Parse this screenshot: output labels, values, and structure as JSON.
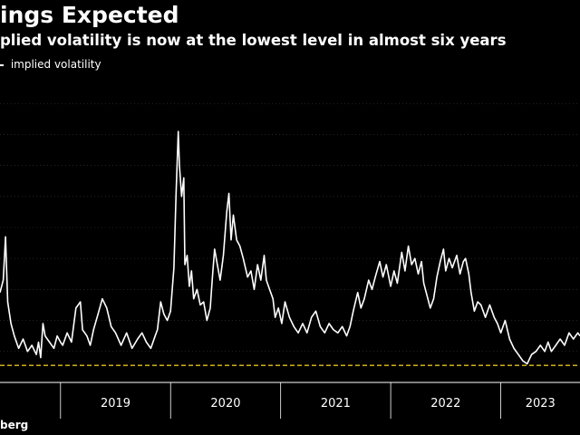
{
  "header": {
    "title": "ings Expected",
    "subtitle": "plied volatility is now at the lowest level in almost six years"
  },
  "legend": {
    "label": "implied volatility"
  },
  "footer": {
    "source": "berg"
  },
  "colors": {
    "background": "#000000",
    "series": "#ffffff",
    "reference_line": "#e8c21a",
    "grid": "#3a3a3a",
    "axis": "#ffffff"
  },
  "chart_data": {
    "type": "line",
    "title": "ings Expected",
    "subtitle": "plied volatility is now at the lowest level in almost six years",
    "xlabel": "",
    "ylabel": "",
    "x_ticks": [
      "2019",
      "2020",
      "2021",
      "2022",
      "2023"
    ],
    "xlim": [
      2018.45,
      2023.72
    ],
    "ylim": [
      0,
      10
    ],
    "grid": true,
    "legend_position": "top-left",
    "reference_line": {
      "y": 0.55,
      "style": "dashed"
    },
    "series": [
      {
        "name": "implied volatility",
        "points": [
          [
            2018.45,
            2.9
          ],
          [
            2018.48,
            3.3
          ],
          [
            2018.5,
            4.7
          ],
          [
            2018.52,
            2.6
          ],
          [
            2018.55,
            1.9
          ],
          [
            2018.58,
            1.5
          ],
          [
            2018.62,
            1.1
          ],
          [
            2018.66,
            1.4
          ],
          [
            2018.7,
            1.0
          ],
          [
            2018.74,
            1.2
          ],
          [
            2018.78,
            0.9
          ],
          [
            2018.8,
            1.3
          ],
          [
            2018.82,
            0.8
          ],
          [
            2018.84,
            1.9
          ],
          [
            2018.86,
            1.5
          ],
          [
            2018.9,
            1.3
          ],
          [
            2018.94,
            1.1
          ],
          [
            2018.97,
            1.5
          ],
          [
            2019.0,
            1.3
          ],
          [
            2019.02,
            1.2
          ],
          [
            2019.06,
            1.6
          ],
          [
            2019.1,
            1.3
          ],
          [
            2019.14,
            2.4
          ],
          [
            2019.18,
            2.6
          ],
          [
            2019.2,
            1.7
          ],
          [
            2019.24,
            1.5
          ],
          [
            2019.27,
            1.2
          ],
          [
            2019.3,
            1.7
          ],
          [
            2019.34,
            2.2
          ],
          [
            2019.38,
            2.7
          ],
          [
            2019.42,
            2.4
          ],
          [
            2019.46,
            1.8
          ],
          [
            2019.5,
            1.6
          ],
          [
            2019.55,
            1.2
          ],
          [
            2019.6,
            1.6
          ],
          [
            2019.65,
            1.1
          ],
          [
            2019.7,
            1.4
          ],
          [
            2019.74,
            1.6
          ],
          [
            2019.78,
            1.3
          ],
          [
            2019.82,
            1.1
          ],
          [
            2019.86,
            1.5
          ],
          [
            2019.88,
            1.7
          ],
          [
            2019.91,
            2.6
          ],
          [
            2019.94,
            2.2
          ],
          [
            2019.97,
            2.0
          ],
          [
            2020.0,
            2.3
          ],
          [
            2020.03,
            3.7
          ],
          [
            2020.05,
            6.1
          ],
          [
            2020.07,
            8.1
          ],
          [
            2020.08,
            7.0
          ],
          [
            2020.1,
            6.0
          ],
          [
            2020.12,
            6.6
          ],
          [
            2020.13,
            3.8
          ],
          [
            2020.15,
            4.1
          ],
          [
            2020.17,
            3.1
          ],
          [
            2020.19,
            3.6
          ],
          [
            2020.21,
            2.7
          ],
          [
            2020.24,
            3.0
          ],
          [
            2020.27,
            2.5
          ],
          [
            2020.3,
            2.6
          ],
          [
            2020.33,
            2.0
          ],
          [
            2020.36,
            2.4
          ],
          [
            2020.38,
            3.4
          ],
          [
            2020.4,
            4.3
          ],
          [
            2020.42,
            3.9
          ],
          [
            2020.45,
            3.3
          ],
          [
            2020.48,
            4.1
          ],
          [
            2020.51,
            5.5
          ],
          [
            2020.53,
            6.1
          ],
          [
            2020.55,
            4.6
          ],
          [
            2020.57,
            5.4
          ],
          [
            2020.6,
            4.6
          ],
          [
            2020.63,
            4.4
          ],
          [
            2020.66,
            4.0
          ],
          [
            2020.7,
            3.4
          ],
          [
            2020.73,
            3.6
          ],
          [
            2020.76,
            3.0
          ],
          [
            2020.79,
            3.8
          ],
          [
            2020.82,
            3.3
          ],
          [
            2020.85,
            4.1
          ],
          [
            2020.87,
            3.3
          ],
          [
            2020.9,
            3.0
          ],
          [
            2020.93,
            2.7
          ],
          [
            2020.95,
            2.1
          ],
          [
            2020.98,
            2.4
          ],
          [
            2021.01,
            1.9
          ],
          [
            2021.04,
            2.6
          ],
          [
            2021.08,
            2.1
          ],
          [
            2021.12,
            1.8
          ],
          [
            2021.16,
            1.6
          ],
          [
            2021.2,
            1.9
          ],
          [
            2021.24,
            1.6
          ],
          [
            2021.28,
            2.1
          ],
          [
            2021.32,
            2.3
          ],
          [
            2021.36,
            1.8
          ],
          [
            2021.4,
            1.6
          ],
          [
            2021.44,
            1.9
          ],
          [
            2021.48,
            1.7
          ],
          [
            2021.52,
            1.6
          ],
          [
            2021.56,
            1.8
          ],
          [
            2021.6,
            1.5
          ],
          [
            2021.63,
            1.8
          ],
          [
            2021.66,
            2.3
          ],
          [
            2021.7,
            2.9
          ],
          [
            2021.73,
            2.4
          ],
          [
            2021.76,
            2.7
          ],
          [
            2021.8,
            3.3
          ],
          [
            2021.83,
            3.0
          ],
          [
            2021.86,
            3.4
          ],
          [
            2021.9,
            3.9
          ],
          [
            2021.93,
            3.4
          ],
          [
            2021.96,
            3.8
          ],
          [
            2022.0,
            3.1
          ],
          [
            2022.03,
            3.6
          ],
          [
            2022.06,
            3.2
          ],
          [
            2022.1,
            4.2
          ],
          [
            2022.13,
            3.6
          ],
          [
            2022.16,
            4.4
          ],
          [
            2022.19,
            3.8
          ],
          [
            2022.22,
            4.0
          ],
          [
            2022.25,
            3.5
          ],
          [
            2022.28,
            3.9
          ],
          [
            2022.3,
            3.2
          ],
          [
            2022.33,
            2.8
          ],
          [
            2022.36,
            2.4
          ],
          [
            2022.39,
            2.7
          ],
          [
            2022.42,
            3.4
          ],
          [
            2022.45,
            3.9
          ],
          [
            2022.48,
            4.3
          ],
          [
            2022.5,
            3.6
          ],
          [
            2022.53,
            4.0
          ],
          [
            2022.56,
            3.7
          ],
          [
            2022.6,
            4.1
          ],
          [
            2022.63,
            3.5
          ],
          [
            2022.66,
            3.9
          ],
          [
            2022.68,
            4.0
          ],
          [
            2022.71,
            3.5
          ],
          [
            2022.73,
            2.9
          ],
          [
            2022.76,
            2.3
          ],
          [
            2022.79,
            2.6
          ],
          [
            2022.82,
            2.5
          ],
          [
            2022.86,
            2.1
          ],
          [
            2022.9,
            2.5
          ],
          [
            2022.94,
            2.1
          ],
          [
            2022.97,
            1.9
          ],
          [
            2023.0,
            1.6
          ],
          [
            2023.04,
            2.0
          ],
          [
            2023.08,
            1.4
          ],
          [
            2023.12,
            1.1
          ],
          [
            2023.16,
            0.9
          ],
          [
            2023.2,
            0.7
          ],
          [
            2023.24,
            0.6
          ],
          [
            2023.28,
            0.9
          ],
          [
            2023.32,
            1.0
          ],
          [
            2023.36,
            1.2
          ],
          [
            2023.4,
            1.0
          ],
          [
            2023.43,
            1.3
          ],
          [
            2023.46,
            1.0
          ],
          [
            2023.5,
            1.2
          ],
          [
            2023.54,
            1.4
          ],
          [
            2023.58,
            1.2
          ],
          [
            2023.62,
            1.6
          ],
          [
            2023.66,
            1.4
          ],
          [
            2023.7,
            1.6
          ],
          [
            2023.72,
            1.5
          ]
        ]
      }
    ]
  }
}
